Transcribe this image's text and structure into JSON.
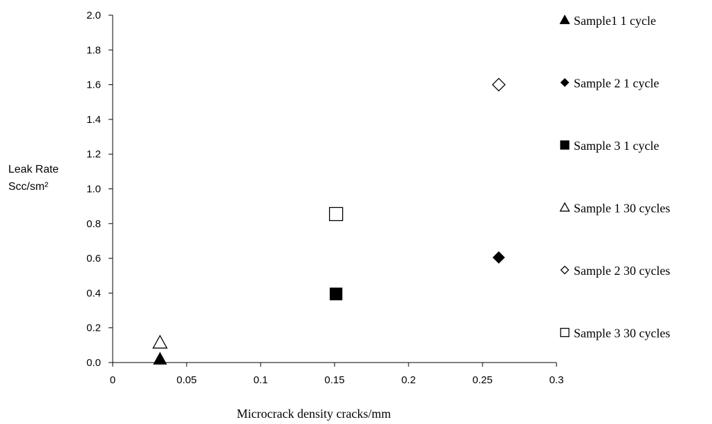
{
  "chart_data": {
    "type": "scatter",
    "title": "",
    "xlabel": "Microcrack density cracks/mm",
    "ylabel_line1": "Leak Rate",
    "ylabel_line2": "Scc/sm²",
    "xlim": [
      0,
      0.3
    ],
    "ylim": [
      0,
      2.0
    ],
    "x_ticks": [
      "0",
      "0.05",
      "0.1",
      "0.15",
      "0.2",
      "0.25",
      "0.3"
    ],
    "x_tick_values": [
      0,
      0.05,
      0.1,
      0.15,
      0.2,
      0.25,
      0.3
    ],
    "y_ticks": [
      "0.0",
      "0.2",
      "0.4",
      "0.6",
      "0.8",
      "1.0",
      "1.2",
      "1.4",
      "1.6",
      "1.8",
      "2.0"
    ],
    "y_tick_values": [
      0,
      0.2,
      0.4,
      0.6,
      0.8,
      1.0,
      1.2,
      1.4,
      1.6,
      1.8,
      2.0
    ],
    "grid": false,
    "legend_position": "right",
    "series": [
      {
        "name": "Sample1  1 cycle",
        "marker": "triangle",
        "filled": true,
        "x": [
          0.032
        ],
        "y": [
          0.02
        ]
      },
      {
        "name": "Sample 2 1 cycle",
        "marker": "diamond",
        "filled": true,
        "x": [
          0.261
        ],
        "y": [
          0.605
        ]
      },
      {
        "name": "Sample 3 1 cycle",
        "marker": "square",
        "filled": true,
        "x": [
          0.151
        ],
        "y": [
          0.395
        ]
      },
      {
        "name": "Sample 1 30 cycles",
        "marker": "triangle",
        "filled": false,
        "x": [
          0.032
        ],
        "y": [
          0.115
        ]
      },
      {
        "name": "Sample 2 30 cycles",
        "marker": "diamond",
        "filled": false,
        "x": [
          0.261
        ],
        "y": [
          1.6
        ]
      },
      {
        "name": "Sample 3 30 cycles",
        "marker": "square",
        "filled": false,
        "x": [
          0.151
        ],
        "y": [
          0.855
        ]
      }
    ]
  }
}
